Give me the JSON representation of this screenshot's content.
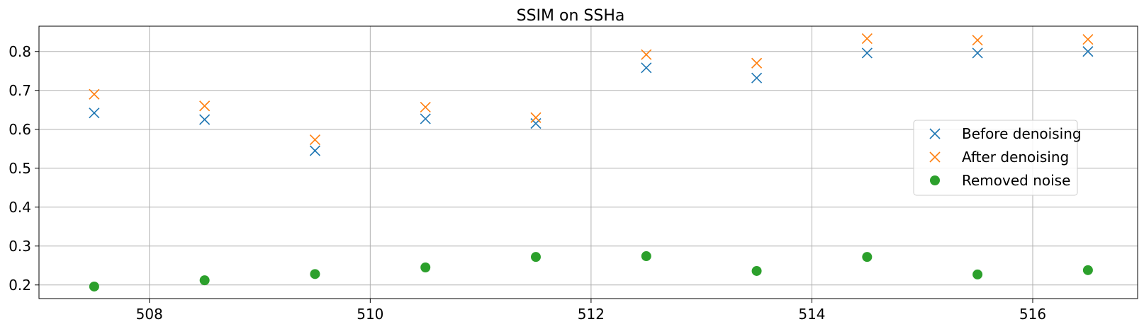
{
  "chart_data": {
    "type": "scatter",
    "title": "SSIM on SSHa",
    "xlabel": "",
    "ylabel": "",
    "xlim": [
      507.0,
      516.95
    ],
    "ylim": [
      0.165,
      0.865
    ],
    "xticks": [
      508,
      510,
      512,
      514,
      516
    ],
    "yticks": [
      0.2,
      0.3,
      0.4,
      0.5,
      0.6,
      0.7,
      0.8
    ],
    "grid": true,
    "legend_position": "right",
    "x": [
      507.5,
      508.5,
      509.5,
      510.5,
      511.5,
      512.5,
      513.5,
      514.5,
      515.5,
      516.5
    ],
    "series": [
      {
        "name": "Before denoising",
        "marker": "x",
        "color": "#1f77b4",
        "values": [
          0.642,
          0.625,
          0.545,
          0.627,
          0.615,
          0.758,
          0.732,
          0.796,
          0.796,
          0.8
        ]
      },
      {
        "name": "After denoising",
        "marker": "x",
        "color": "#ff7f0e",
        "values": [
          0.69,
          0.66,
          0.573,
          0.657,
          0.63,
          0.792,
          0.77,
          0.833,
          0.829,
          0.831
        ]
      },
      {
        "name": "Removed noise",
        "marker": "circle",
        "color": "#2ca02c",
        "values": [
          0.196,
          0.212,
          0.228,
          0.245,
          0.272,
          0.274,
          0.236,
          0.272,
          0.227,
          0.238
        ]
      }
    ]
  }
}
